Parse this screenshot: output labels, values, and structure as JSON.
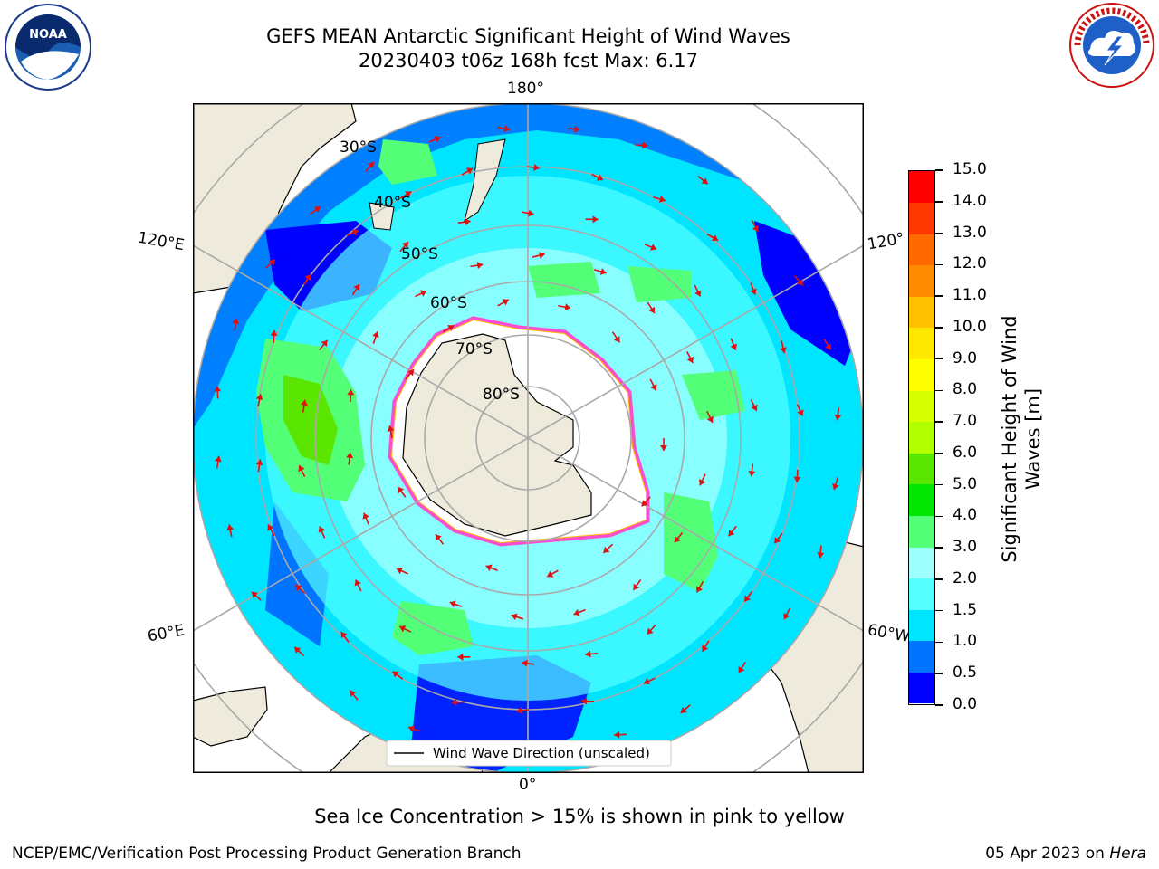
{
  "header": {
    "title_line1": "GEFS MEAN Antarctic Significant Height of Wind Waves",
    "title_line2": "20230403 t06z 168h fcst   Max: 6.17"
  },
  "logos": {
    "left": {
      "name": "noaa-logo",
      "text": "NOAA"
    },
    "right": {
      "name": "national-weather-service-logo",
      "text": "NATIONAL WEATHER SERVICE"
    }
  },
  "map": {
    "longitude_labels": {
      "top": "180°",
      "bottom": "0°",
      "upper_left": "120°E",
      "lower_left": "60°E",
      "upper_right": "120°",
      "lower_right": "60°W"
    },
    "latitude_labels": [
      "30°S",
      "40°S",
      "50°S",
      "60°S",
      "70°S",
      "80°S"
    ],
    "legend_label": "Wind Wave Direction (unscaled)"
  },
  "colorbar": {
    "title": "Significant Height of Wind Waves [m]",
    "title_lines": [
      "Significant Height of Wind",
      "Waves [m]"
    ],
    "ticks": [
      "0.0",
      "0.5",
      "1.0",
      "1.5",
      "2.0",
      "3.0",
      "4.0",
      "5.0",
      "6.0",
      "7.0",
      "8.0",
      "9.0",
      "10.0",
      "11.0",
      "12.0",
      "13.0",
      "14.0",
      "15.0"
    ],
    "colors": [
      "#0000ff",
      "#0073ff",
      "#00e5ff",
      "#54ffff",
      "#9effff",
      "#52ff76",
      "#00e600",
      "#5ae600",
      "#b2ff00",
      "#d6ff00",
      "#ffff00",
      "#ffe800",
      "#ffc000",
      "#ff8c00",
      "#ff6a00",
      "#ff3800",
      "#ff0000"
    ]
  },
  "footer": {
    "note": "Sea Ice Concentration > 15% is shown in pink to yellow",
    "credit_left": "NCEP/EMC/Verification Post Processing Product Generation Branch",
    "date": "05 Apr 2023 on ",
    "machine": "Hera"
  }
}
